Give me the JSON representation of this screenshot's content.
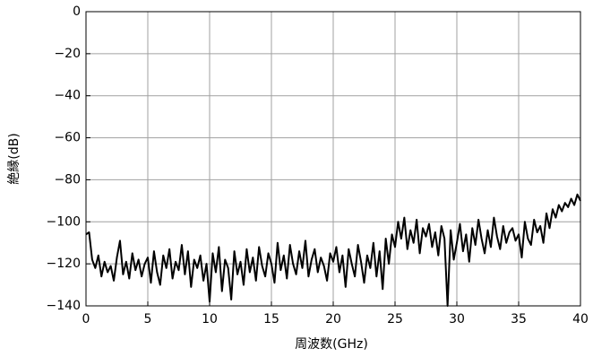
{
  "chart_data": {
    "type": "line",
    "xlabel": "周波数(GHz)",
    "ylabel": "絶縁(dB)",
    "x": [
      0,
      0.25,
      0.5,
      0.75,
      1,
      1.25,
      1.5,
      1.75,
      2,
      2.25,
      2.5,
      2.75,
      3,
      3.25,
      3.5,
      3.75,
      4,
      4.25,
      4.5,
      4.75,
      5,
      5.25,
      5.5,
      5.75,
      6,
      6.25,
      6.5,
      6.75,
      7,
      7.25,
      7.5,
      7.75,
      8,
      8.25,
      8.5,
      8.75,
      9,
      9.25,
      9.5,
      9.75,
      10,
      10.25,
      10.5,
      10.75,
      11,
      11.25,
      11.5,
      11.75,
      12,
      12.25,
      12.5,
      12.75,
      13,
      13.25,
      13.5,
      13.75,
      14,
      14.25,
      14.5,
      14.75,
      15,
      15.25,
      15.5,
      15.75,
      16,
      16.25,
      16.5,
      16.75,
      17,
      17.25,
      17.5,
      17.75,
      18,
      18.25,
      18.5,
      18.75,
      19,
      19.25,
      19.5,
      19.75,
      20,
      20.25,
      20.5,
      20.75,
      21,
      21.25,
      21.5,
      21.75,
      22,
      22.25,
      22.5,
      22.75,
      23,
      23.25,
      23.5,
      23.75,
      24,
      24.25,
      24.5,
      24.75,
      25,
      25.25,
      25.5,
      25.75,
      26,
      26.25,
      26.5,
      26.75,
      27,
      27.25,
      27.5,
      27.75,
      28,
      28.25,
      28.5,
      28.75,
      29,
      29.25,
      29.5,
      29.75,
      30,
      30.25,
      30.5,
      30.75,
      31,
      31.25,
      31.5,
      31.75,
      32,
      32.25,
      32.5,
      32.75,
      33,
      33.25,
      33.5,
      33.75,
      34,
      34.25,
      34.5,
      34.75,
      35,
      35.25,
      35.5,
      35.75,
      36,
      36.25,
      36.5,
      36.75,
      37,
      37.25,
      37.5,
      37.75,
      38,
      38.25,
      38.5,
      38.75,
      39,
      39.25,
      39.5,
      39.75,
      40
    ],
    "series": [
      {
        "color": "#000000",
        "values": [
          -106,
          -105,
          -118,
          -122,
          -116,
          -126,
          -119,
          -124,
          -121,
          -128,
          -117,
          -109,
          -125,
          -119,
          -127,
          -115,
          -123,
          -118,
          -126,
          -120,
          -117,
          -129,
          -114,
          -124,
          -130,
          -116,
          -122,
          -113,
          -127,
          -119,
          -123,
          -111,
          -125,
          -114,
          -131,
          -118,
          -122,
          -116,
          -128,
          -120,
          -138,
          -115,
          -124,
          -112,
          -133,
          -118,
          -122,
          -137,
          -114,
          -125,
          -119,
          -130,
          -113,
          -124,
          -117,
          -128,
          -112,
          -121,
          -126,
          -115,
          -120,
          -129,
          -110,
          -123,
          -116,
          -127,
          -111,
          -120,
          -125,
          -114,
          -122,
          -109,
          -126,
          -118,
          -113,
          -124,
          -117,
          -121,
          -128,
          -115,
          -119,
          -112,
          -124,
          -116,
          -131,
          -113,
          -120,
          -126,
          -111,
          -119,
          -129,
          -116,
          -122,
          -110,
          -126,
          -114,
          -132,
          -108,
          -120,
          -106,
          -112,
          -100,
          -108,
          -98,
          -113,
          -104,
          -110,
          -99,
          -115,
          -103,
          -107,
          -101,
          -112,
          -105,
          -116,
          -102,
          -108,
          -140,
          -104,
          -118,
          -110,
          -101,
          -114,
          -106,
          -119,
          -103,
          -111,
          -99,
          -108,
          -115,
          -104,
          -112,
          -98,
          -107,
          -113,
          -102,
          -110,
          -105,
          -103,
          -109,
          -106,
          -117,
          -100,
          -108,
          -111,
          -99,
          -105,
          -102,
          -110,
          -96,
          -103,
          -94,
          -98,
          -92,
          -95,
          -91,
          -93,
          -89,
          -92,
          -87,
          -90
        ]
      }
    ],
    "xlim": [
      0,
      40
    ],
    "xticks": [
      0,
      5,
      10,
      15,
      20,
      25,
      30,
      35,
      40
    ],
    "ylim": [
      -140,
      0
    ],
    "yticks": [
      {
        "value": -140,
        "label": "−140"
      },
      {
        "value": -120,
        "label": "−120"
      },
      {
        "value": -100,
        "label": "−100"
      },
      {
        "value": -80,
        "label": "−80"
      },
      {
        "value": -60,
        "label": "−60"
      },
      {
        "value": -40,
        "label": "−40"
      },
      {
        "value": -20,
        "label": "−20"
      },
      0
    ],
    "grid": true
  }
}
